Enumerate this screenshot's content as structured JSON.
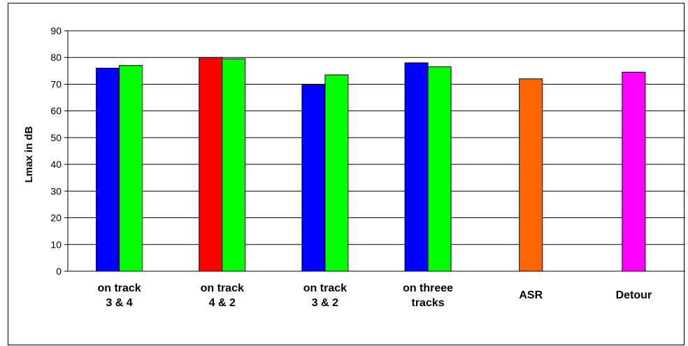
{
  "chart_data": {
    "type": "bar",
    "ylabel": "Lmax in dB",
    "xlabel": "",
    "ylim": [
      0,
      90
    ],
    "yticks": [
      0,
      10,
      20,
      30,
      40,
      50,
      60,
      70,
      80,
      90
    ],
    "grid": true,
    "legend": "none",
    "groups": [
      {
        "label_lines": [
          "on track",
          "3 & 4"
        ],
        "bars": [
          {
            "value": 76,
            "color": "#0000ff"
          },
          {
            "value": 77,
            "color": "#00ff00"
          }
        ]
      },
      {
        "label_lines": [
          "on track",
          "4 & 2"
        ],
        "bars": [
          {
            "value": 80,
            "color": "#ff0000"
          },
          {
            "value": 79.5,
            "color": "#00ff00"
          }
        ]
      },
      {
        "label_lines": [
          "on track",
          "3 & 2"
        ],
        "bars": [
          {
            "value": 70,
            "color": "#0000ff"
          },
          {
            "value": 73.5,
            "color": "#00ff00"
          }
        ]
      },
      {
        "label_lines": [
          "on threee",
          "tracks"
        ],
        "bars": [
          {
            "value": 78,
            "color": "#0000ff"
          },
          {
            "value": 76.5,
            "color": "#00ff00"
          }
        ]
      },
      {
        "label_lines": [
          "ASR"
        ],
        "bars": [
          {
            "value": 72,
            "color": "#ff6600"
          }
        ]
      },
      {
        "label_lines": [
          "Detour"
        ],
        "bars": [
          {
            "value": 74.5,
            "color": "#ff00ff"
          }
        ]
      }
    ]
  }
}
